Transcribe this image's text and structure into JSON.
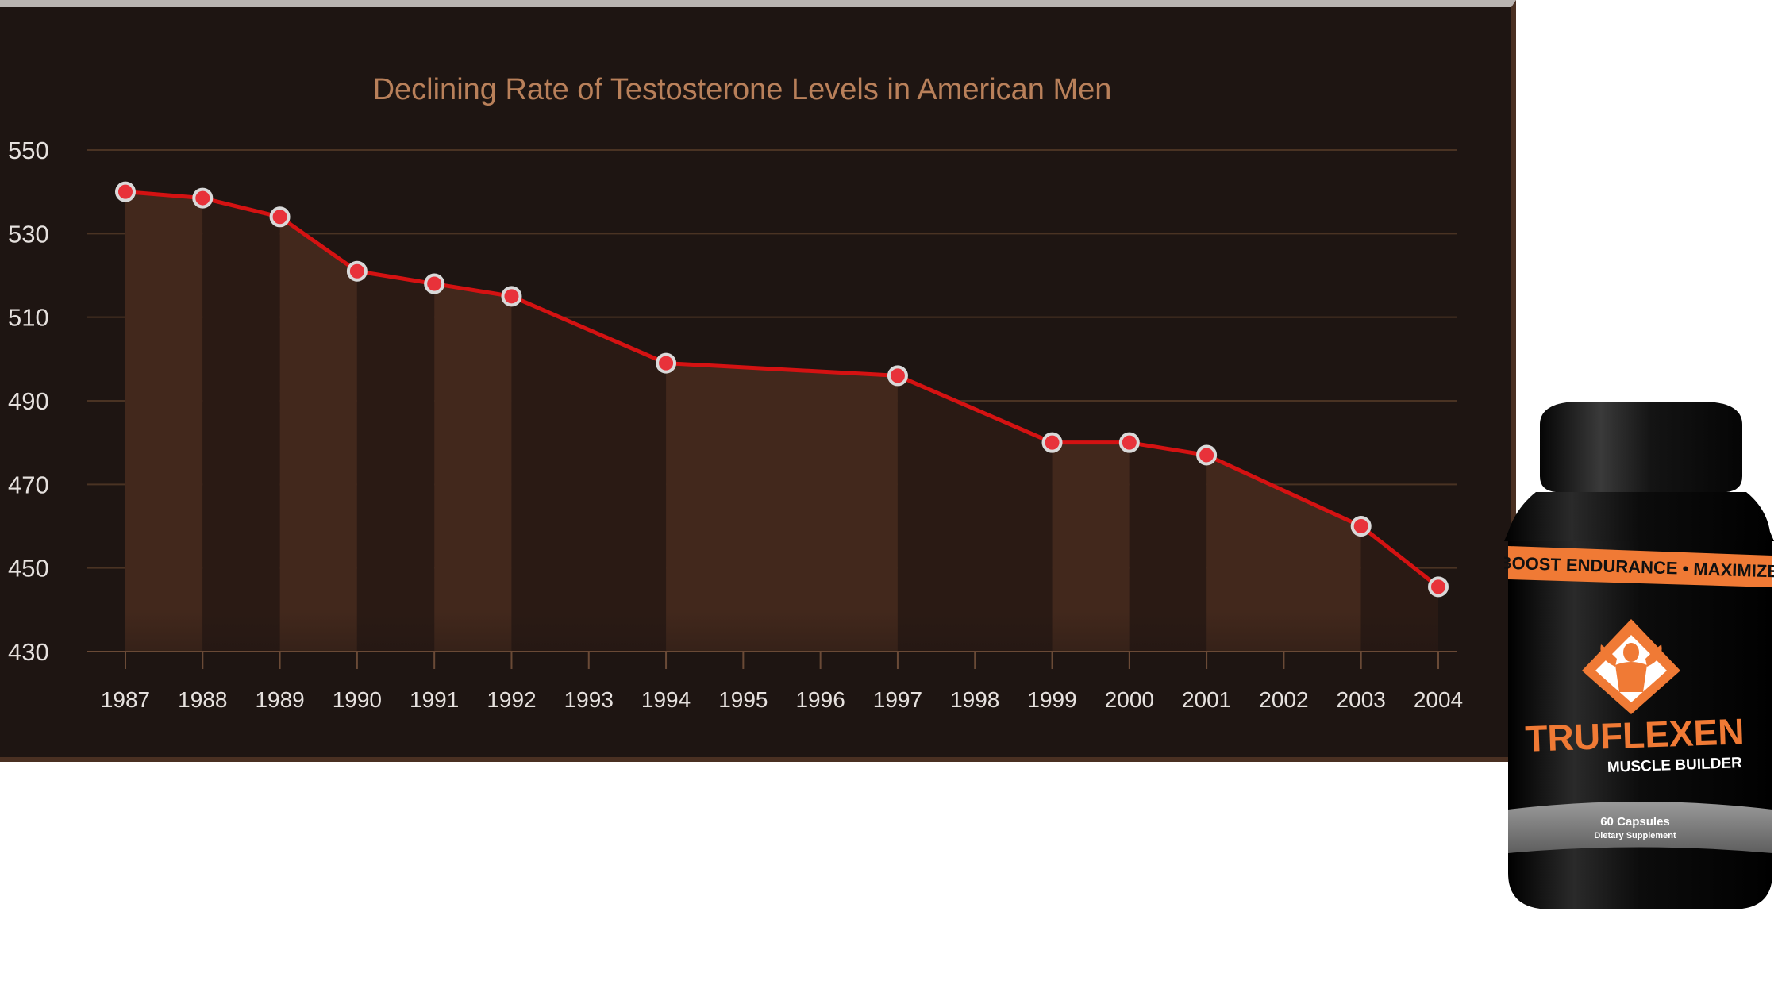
{
  "chart_data": {
    "type": "area",
    "title": "Declining Rate of Testosterone Levels in American Men",
    "xlabel": "",
    "ylabel": "",
    "ylim": [
      430,
      550
    ],
    "yticks": [
      550,
      530,
      510,
      490,
      470,
      450,
      430
    ],
    "x": [
      "1987",
      "1988",
      "1989",
      "1990",
      "1991",
      "1992",
      "1993",
      "1994",
      "1995",
      "1996",
      "1997",
      "1998",
      "1999",
      "2000",
      "2001",
      "2002",
      "2003",
      "2004"
    ],
    "points": [
      {
        "x": "1987",
        "y": 540
      },
      {
        "x": "1988",
        "y": 538.5
      },
      {
        "x": "1989",
        "y": 534
      },
      {
        "x": "1990",
        "y": 521
      },
      {
        "x": "1991",
        "y": 518
      },
      {
        "x": "1992",
        "y": 515
      },
      {
        "x": "1994",
        "y": 499
      },
      {
        "x": "1997",
        "y": 496
      },
      {
        "x": "1999",
        "y": 480
      },
      {
        "x": "2000",
        "y": 480
      },
      {
        "x": "2001",
        "y": 477
      },
      {
        "x": "2003",
        "y": 460
      },
      {
        "x": "2004",
        "y": 445.5
      }
    ],
    "grid": true,
    "colors": {
      "background": "#1e1512",
      "line": "#d41212",
      "marker_fill": "#e8323a",
      "marker_stroke": "#d9d9d9",
      "area_light": "#42281c",
      "area_dark": "#2a1a14",
      "gridline": "#4a3323",
      "title": "#b9805a",
      "tick_text": "#e6e1de"
    }
  },
  "product": {
    "banner_text": "E • BOOST ENDURANCE • MAXIMIZE PE",
    "brand": "TRUFLEXEN",
    "subtitle": "MUSCLE BUILDER",
    "count": "60 Capsules",
    "type": "Dietary Supplement",
    "colors": {
      "orange": "#f07a35",
      "black": "#0b0b0b"
    }
  }
}
